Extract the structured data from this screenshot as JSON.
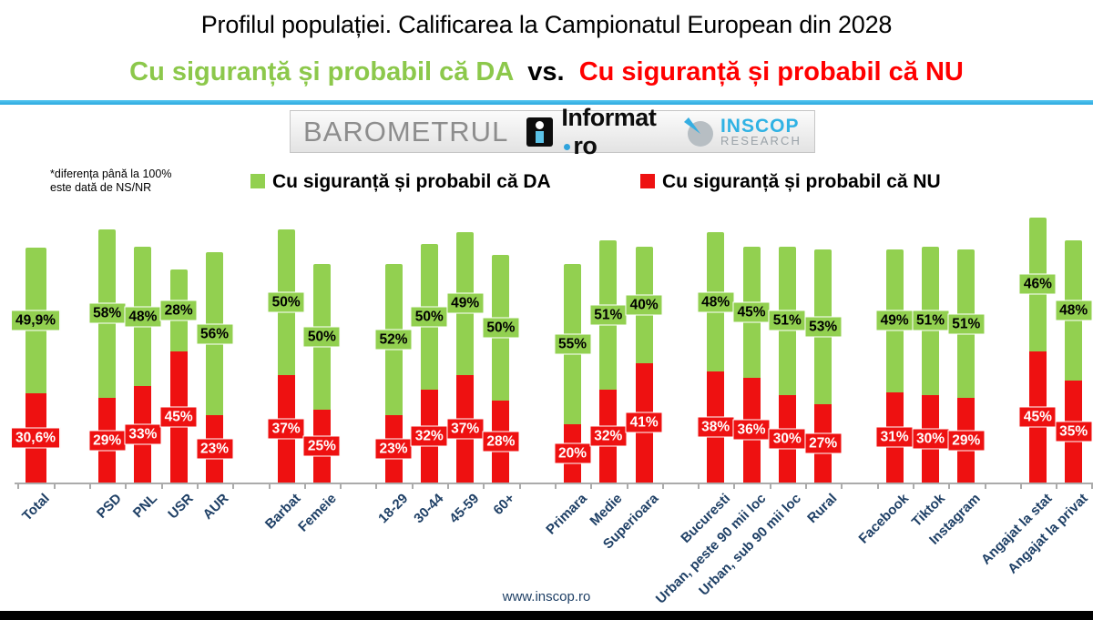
{
  "header": {
    "title": "Profilul populației. Calificarea la Campionatul European din 2028",
    "subtitle_yes": "Cu siguranță și probabil că DA",
    "subtitle_vs": "vs.",
    "subtitle_no": "Cu siguranță și probabil că NU"
  },
  "branding": {
    "barometrul": "BAROMETRUL",
    "informat_name": "Informat",
    "informat_tld": "ro",
    "inscop_name": "INSCOP",
    "inscop_sub": "RESEARCH"
  },
  "footnote": {
    "line1": "*diferența până la 100%",
    "line2": "este dată de NS/NR"
  },
  "legend": {
    "yes_label": "Cu siguranță și probabil că DA",
    "no_label": "Cu siguranță și probabil că NU"
  },
  "footer": {
    "website": "www.inscop.ro"
  },
  "colors": {
    "yes_green": "#92D050",
    "no_red": "#EE1111",
    "subtitle_green": "#8CC84B",
    "subtitle_red": "#FF0000",
    "axis_label_navy": "#1F4066",
    "divider_cyan": "#2CA8DE",
    "inscop_cyan": "#2FB2E4"
  },
  "chart_data": {
    "type": "bar",
    "stacked": true,
    "value_unit": "%",
    "ylim": [
      0,
      100
    ],
    "grid": false,
    "legend_position": "top",
    "series_names": [
      "Cu siguranță și probabil că DA",
      "Cu siguranță și probabil că NU"
    ],
    "note": "labels show DA (green, black text) and NU (red, white text) per category",
    "items": [
      {
        "label": "Total",
        "yes": 49.9,
        "no": 30.6,
        "yes_label": "49,9%",
        "no_label": "30,6%",
        "slot": 0
      },
      {
        "label": "PSD",
        "yes": 58,
        "no": 29,
        "yes_label": "58%",
        "no_label": "29%",
        "slot": 2
      },
      {
        "label": "PNL",
        "yes": 48,
        "no": 33,
        "yes_label": "48%",
        "no_label": "33%",
        "slot": 3
      },
      {
        "label": "USR",
        "yes": 28,
        "no": 45,
        "yes_label": "28%",
        "no_label": "45%",
        "slot": 4
      },
      {
        "label": "AUR",
        "yes": 56,
        "no": 23,
        "yes_label": "56%",
        "no_label": "23%",
        "slot": 5
      },
      {
        "label": "Barbat",
        "yes": 50,
        "no": 37,
        "yes_label": "50%",
        "no_label": "37%",
        "slot": 7
      },
      {
        "label": "Femeie",
        "yes": 50,
        "no": 25,
        "yes_label": "50%",
        "no_label": "25%",
        "slot": 8
      },
      {
        "label": "18-29",
        "yes": 52,
        "no": 23,
        "yes_label": "52%",
        "no_label": "23%",
        "slot": 10
      },
      {
        "label": "30-44",
        "yes": 50,
        "no": 32,
        "yes_label": "50%",
        "no_label": "32%",
        "slot": 11
      },
      {
        "label": "45-59",
        "yes": 49,
        "no": 37,
        "yes_label": "49%",
        "no_label": "37%",
        "slot": 12
      },
      {
        "label": "60+",
        "yes": 50,
        "no": 28,
        "yes_label": "50%",
        "no_label": "28%",
        "slot": 13
      },
      {
        "label": "Primara",
        "yes": 55,
        "no": 20,
        "yes_label": "55%",
        "no_label": "20%",
        "slot": 15
      },
      {
        "label": "Medie",
        "yes": 51,
        "no": 32,
        "yes_label": "51%",
        "no_label": "32%",
        "slot": 16
      },
      {
        "label": "Superioara",
        "yes": 40,
        "no": 41,
        "yes_label": "40%",
        "no_label": "41%",
        "slot": 17
      },
      {
        "label": "Bucuresti",
        "yes": 48,
        "no": 38,
        "yes_label": "48%",
        "no_label": "38%",
        "slot": 19
      },
      {
        "label": "Urban, peste 90 mii loc",
        "yes": 45,
        "no": 36,
        "yes_label": "45%",
        "no_label": "36%",
        "slot": 20
      },
      {
        "label": "Urban, sub 90 mii loc",
        "yes": 51,
        "no": 30,
        "yes_label": "51%",
        "no_label": "30%",
        "slot": 21
      },
      {
        "label": "Rural",
        "yes": 53,
        "no": 27,
        "yes_label": "53%",
        "no_label": "27%",
        "slot": 22
      },
      {
        "label": "Facebook",
        "yes": 49,
        "no": 31,
        "yes_label": "49%",
        "no_label": "31%",
        "slot": 24
      },
      {
        "label": "Tiktok",
        "yes": 51,
        "no": 30,
        "yes_label": "51%",
        "no_label": "30%",
        "slot": 25
      },
      {
        "label": "Instagram",
        "yes": 51,
        "no": 29,
        "yes_label": "51%",
        "no_label": "29%",
        "slot": 26
      },
      {
        "label": "Angajat la stat",
        "yes": 46,
        "no": 45,
        "yes_label": "46%",
        "no_label": "45%",
        "slot": 28
      },
      {
        "label": "Angajat la privat",
        "yes": 48,
        "no": 35,
        "yes_label": "48%",
        "no_label": "35%",
        "slot": 29
      }
    ]
  }
}
